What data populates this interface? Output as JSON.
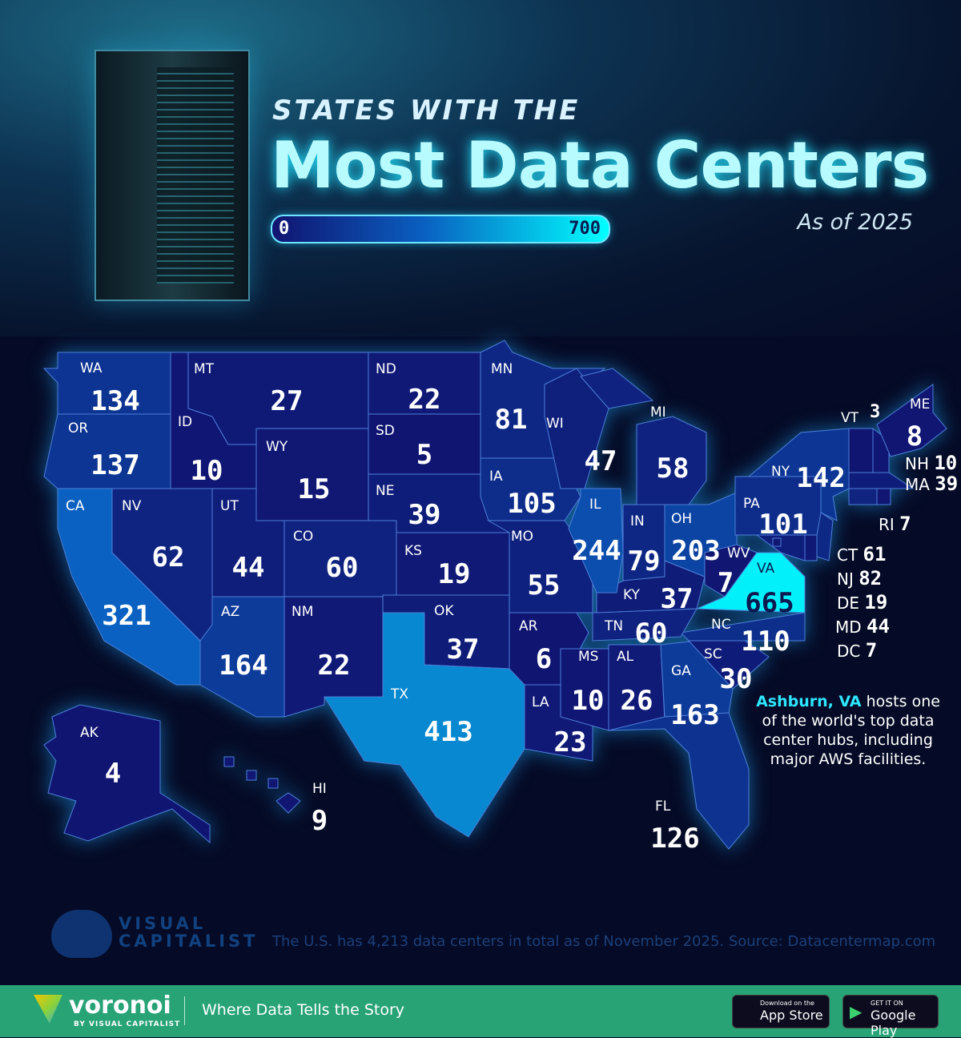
{
  "header": {
    "subtitle": "STATES WITH THE",
    "title": "Most Data Centers",
    "as_of": "As of 2025"
  },
  "legend": {
    "min": "0",
    "max": "700",
    "colors": [
      "#101470",
      "#0a5fc0",
      "#00ffff"
    ]
  },
  "states": [
    {
      "abbr": "WA",
      "value": 134
    },
    {
      "abbr": "OR",
      "value": 137
    },
    {
      "abbr": "CA",
      "value": 321
    },
    {
      "abbr": "NV",
      "value": 62
    },
    {
      "abbr": "ID",
      "value": 10
    },
    {
      "abbr": "MT",
      "value": 27
    },
    {
      "abbr": "WY",
      "value": 15
    },
    {
      "abbr": "UT",
      "value": 44
    },
    {
      "abbr": "CO",
      "value": 60
    },
    {
      "abbr": "AZ",
      "value": 164
    },
    {
      "abbr": "NM",
      "value": 22
    },
    {
      "abbr": "ND",
      "value": 22
    },
    {
      "abbr": "SD",
      "value": 5
    },
    {
      "abbr": "NE",
      "value": 39
    },
    {
      "abbr": "KS",
      "value": 19
    },
    {
      "abbr": "OK",
      "value": 37
    },
    {
      "abbr": "TX",
      "value": 413
    },
    {
      "abbr": "MN",
      "value": 81
    },
    {
      "abbr": "IA",
      "value": 105
    },
    {
      "abbr": "MO",
      "value": 55
    },
    {
      "abbr": "AR",
      "value": 6
    },
    {
      "abbr": "LA",
      "value": 23
    },
    {
      "abbr": "WI",
      "value": 47
    },
    {
      "abbr": "IL",
      "value": 244
    },
    {
      "abbr": "MI",
      "value": 58
    },
    {
      "abbr": "IN",
      "value": 79
    },
    {
      "abbr": "OH",
      "value": 203
    },
    {
      "abbr": "KY",
      "value": 37
    },
    {
      "abbr": "TN",
      "value": 60
    },
    {
      "abbr": "MS",
      "value": 10
    },
    {
      "abbr": "AL",
      "value": 26
    },
    {
      "abbr": "GA",
      "value": 163
    },
    {
      "abbr": "FL",
      "value": 126
    },
    {
      "abbr": "SC",
      "value": 30
    },
    {
      "abbr": "NC",
      "value": 110
    },
    {
      "abbr": "VA",
      "value": 665
    },
    {
      "abbr": "WV",
      "value": 7
    },
    {
      "abbr": "PA",
      "value": 101
    },
    {
      "abbr": "NY",
      "value": 142
    },
    {
      "abbr": "VT",
      "value": 3
    },
    {
      "abbr": "NH",
      "value": 10
    },
    {
      "abbr": "ME",
      "value": 8
    },
    {
      "abbr": "MA",
      "value": 39
    },
    {
      "abbr": "RI",
      "value": 7
    },
    {
      "abbr": "CT",
      "value": 61
    },
    {
      "abbr": "NJ",
      "value": 82
    },
    {
      "abbr": "DE",
      "value": 19
    },
    {
      "abbr": "MD",
      "value": 44
    },
    {
      "abbr": "DC",
      "value": 7
    },
    {
      "abbr": "AK",
      "value": 4
    },
    {
      "abbr": "HI",
      "value": 9
    }
  ],
  "note": {
    "highlight": "Ashburn, VA",
    "text": " hosts one of the world's top data center hubs, including major AWS facilities."
  },
  "source": "The U.S. has 4,213 data centers in total as of November 2025. Source: Datacentermap.com",
  "brand": {
    "vc_line1": "VISUAL",
    "vc_line2": "CAPITALIST",
    "voronoi": "voronoi",
    "voronoi_by": "BY VISUAL CAPITALIST",
    "tagline": "Where Data Tells the Story"
  },
  "stores": {
    "apple_small": "Download on the",
    "apple": "App Store",
    "google_small": "GET IT ON",
    "google": "Google Play"
  }
}
